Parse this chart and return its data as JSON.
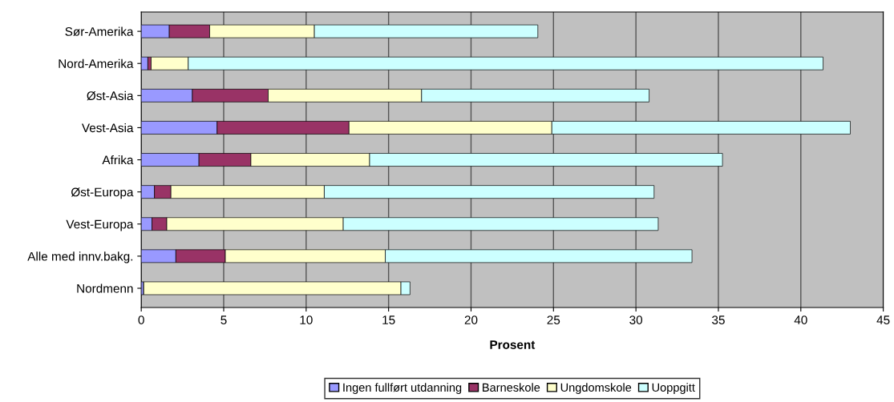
{
  "chart_data": {
    "type": "bar",
    "orientation": "horizontal",
    "stacked": true,
    "xlabel": "Prosent",
    "categories": [
      "Sør-Amerika",
      "Nord-Amerika",
      "Øst-Asia",
      "Vest-Asia",
      "Afrika",
      "Øst-Europa",
      "Vest-Europa",
      "Alle med innv.bakg.",
      "Nordmenn"
    ],
    "series": [
      {
        "name": "Ingen fullført utdanning",
        "color": "#9999ff",
        "values": [
          1.7,
          0.4,
          3.1,
          4.6,
          3.5,
          0.8,
          0.65,
          2.1,
          0.15
        ]
      },
      {
        "name": "Barneskole",
        "color": "#993366",
        "values": [
          2.45,
          0.2,
          4.6,
          8.0,
          3.15,
          1.0,
          0.9,
          3.0,
          null
        ]
      },
      {
        "name": "Ungdomskole",
        "color": "#ffffcc",
        "values": [
          6.35,
          2.25,
          9.3,
          12.3,
          7.2,
          9.3,
          10.7,
          9.7,
          15.6
        ]
      },
      {
        "name": "Uoppgitt",
        "color": "#ccffff",
        "values": [
          13.55,
          38.5,
          13.8,
          18.1,
          21.4,
          20.0,
          19.1,
          18.6,
          0.55
        ]
      }
    ],
    "xlim": [
      0,
      45
    ],
    "xticks": [
      0,
      5,
      10,
      15,
      20,
      25,
      30,
      35,
      40,
      45
    ],
    "grid": "x",
    "legend": "bottom"
  }
}
